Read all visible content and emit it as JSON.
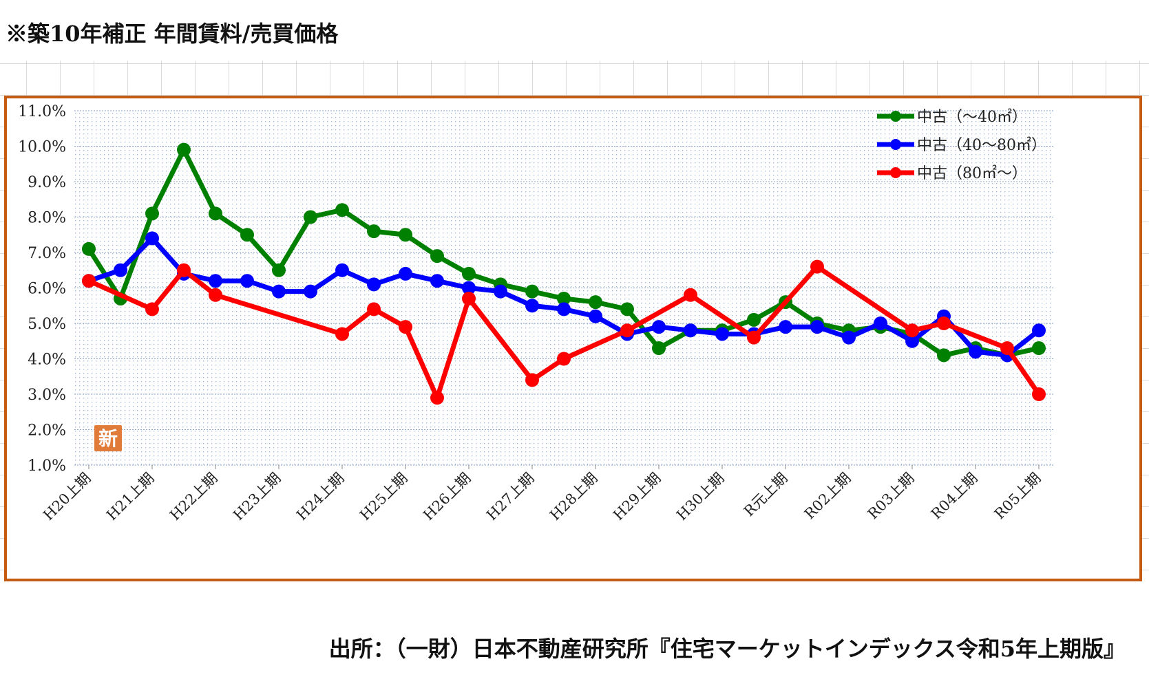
{
  "title": "※築10年補正  年間賃料/売買価格",
  "source": "出所：（一財）日本不動産研究所『住宅マーケットインデックス令和5年上期版』",
  "badge": "新",
  "chart_data": {
    "type": "line",
    "title": "",
    "xlabel": "",
    "ylabel": "",
    "ylim": [
      1.0,
      11.0
    ],
    "yticks": [
      "1.0%",
      "2.0%",
      "3.0%",
      "4.0%",
      "5.0%",
      "6.0%",
      "7.0%",
      "8.0%",
      "9.0%",
      "10.0%",
      "11.0%"
    ],
    "x_tick_labels": [
      "H20上期",
      "H21上期",
      "H22上期",
      "H23上期",
      "H24上期",
      "H25上期",
      "H26上期",
      "H27上期",
      "H28上期",
      "H29上期",
      "H30上期",
      "R元上期",
      "R02上期",
      "R03上期",
      "R04上期",
      "R05上期"
    ],
    "grid": "horizontal dotted",
    "legend_position": "top-right",
    "series": [
      {
        "name": "中古（～40㎡）",
        "color": "#008000",
        "points": [
          [
            0,
            7.1
          ],
          [
            1,
            5.7
          ],
          [
            2,
            8.1
          ],
          [
            3,
            9.9
          ],
          [
            4,
            8.1
          ],
          [
            5,
            7.5
          ],
          [
            6,
            6.5
          ],
          [
            7,
            8.0
          ],
          [
            8,
            8.2
          ],
          [
            9,
            7.6
          ],
          [
            10,
            7.5
          ],
          [
            11,
            6.9
          ],
          [
            12,
            6.4
          ],
          [
            13,
            6.1
          ],
          [
            14,
            5.9
          ],
          [
            15,
            5.7
          ],
          [
            16,
            5.6
          ],
          [
            17,
            5.4
          ],
          [
            18,
            4.3
          ],
          [
            19,
            4.8
          ],
          [
            20,
            4.8
          ],
          [
            21,
            5.1
          ],
          [
            22,
            5.6
          ],
          [
            23,
            5.0
          ],
          [
            24,
            4.8
          ],
          [
            25,
            4.9
          ],
          [
            26,
            4.7
          ],
          [
            27,
            4.1
          ],
          [
            28,
            4.3
          ],
          [
            29,
            4.1
          ],
          [
            30,
            4.3
          ]
        ]
      },
      {
        "name": "中古（40～80㎡）",
        "color": "#0000ff",
        "points": [
          [
            0,
            6.2
          ],
          [
            1,
            6.5
          ],
          [
            2,
            7.4
          ],
          [
            3,
            6.4
          ],
          [
            4,
            6.2
          ],
          [
            5,
            6.2
          ],
          [
            6,
            5.9
          ],
          [
            7,
            5.9
          ],
          [
            8,
            6.5
          ],
          [
            9,
            6.1
          ],
          [
            10,
            6.4
          ],
          [
            11,
            6.2
          ],
          [
            12,
            6.0
          ],
          [
            13,
            5.9
          ],
          [
            14,
            5.5
          ],
          [
            15,
            5.4
          ],
          [
            16,
            5.2
          ],
          [
            17,
            4.7
          ],
          [
            18,
            4.9
          ],
          [
            19,
            4.8
          ],
          [
            20,
            4.7
          ],
          [
            21,
            4.7
          ],
          [
            22,
            4.9
          ],
          [
            23,
            4.9
          ],
          [
            24,
            4.6
          ],
          [
            25,
            5.0
          ],
          [
            26,
            4.5
          ],
          [
            27,
            5.2
          ],
          [
            28,
            4.2
          ],
          [
            29,
            4.1
          ],
          [
            30,
            4.8
          ]
        ]
      },
      {
        "name": "中古（80㎡～）",
        "color": "#ff0000",
        "points": [
          [
            0,
            6.2
          ],
          [
            2,
            5.4
          ],
          [
            3,
            6.5
          ],
          [
            4,
            5.8
          ],
          [
            8,
            4.7
          ],
          [
            9,
            5.4
          ],
          [
            10,
            4.9
          ],
          [
            11,
            2.9
          ],
          [
            12,
            5.7
          ],
          [
            14,
            3.4
          ],
          [
            15,
            4.0
          ],
          [
            17,
            4.8
          ],
          [
            19,
            5.8
          ],
          [
            21,
            4.6
          ],
          [
            23,
            6.6
          ],
          [
            26,
            4.8
          ],
          [
            27,
            5.0
          ],
          [
            29,
            4.3
          ],
          [
            30,
            3.0
          ]
        ]
      }
    ]
  }
}
